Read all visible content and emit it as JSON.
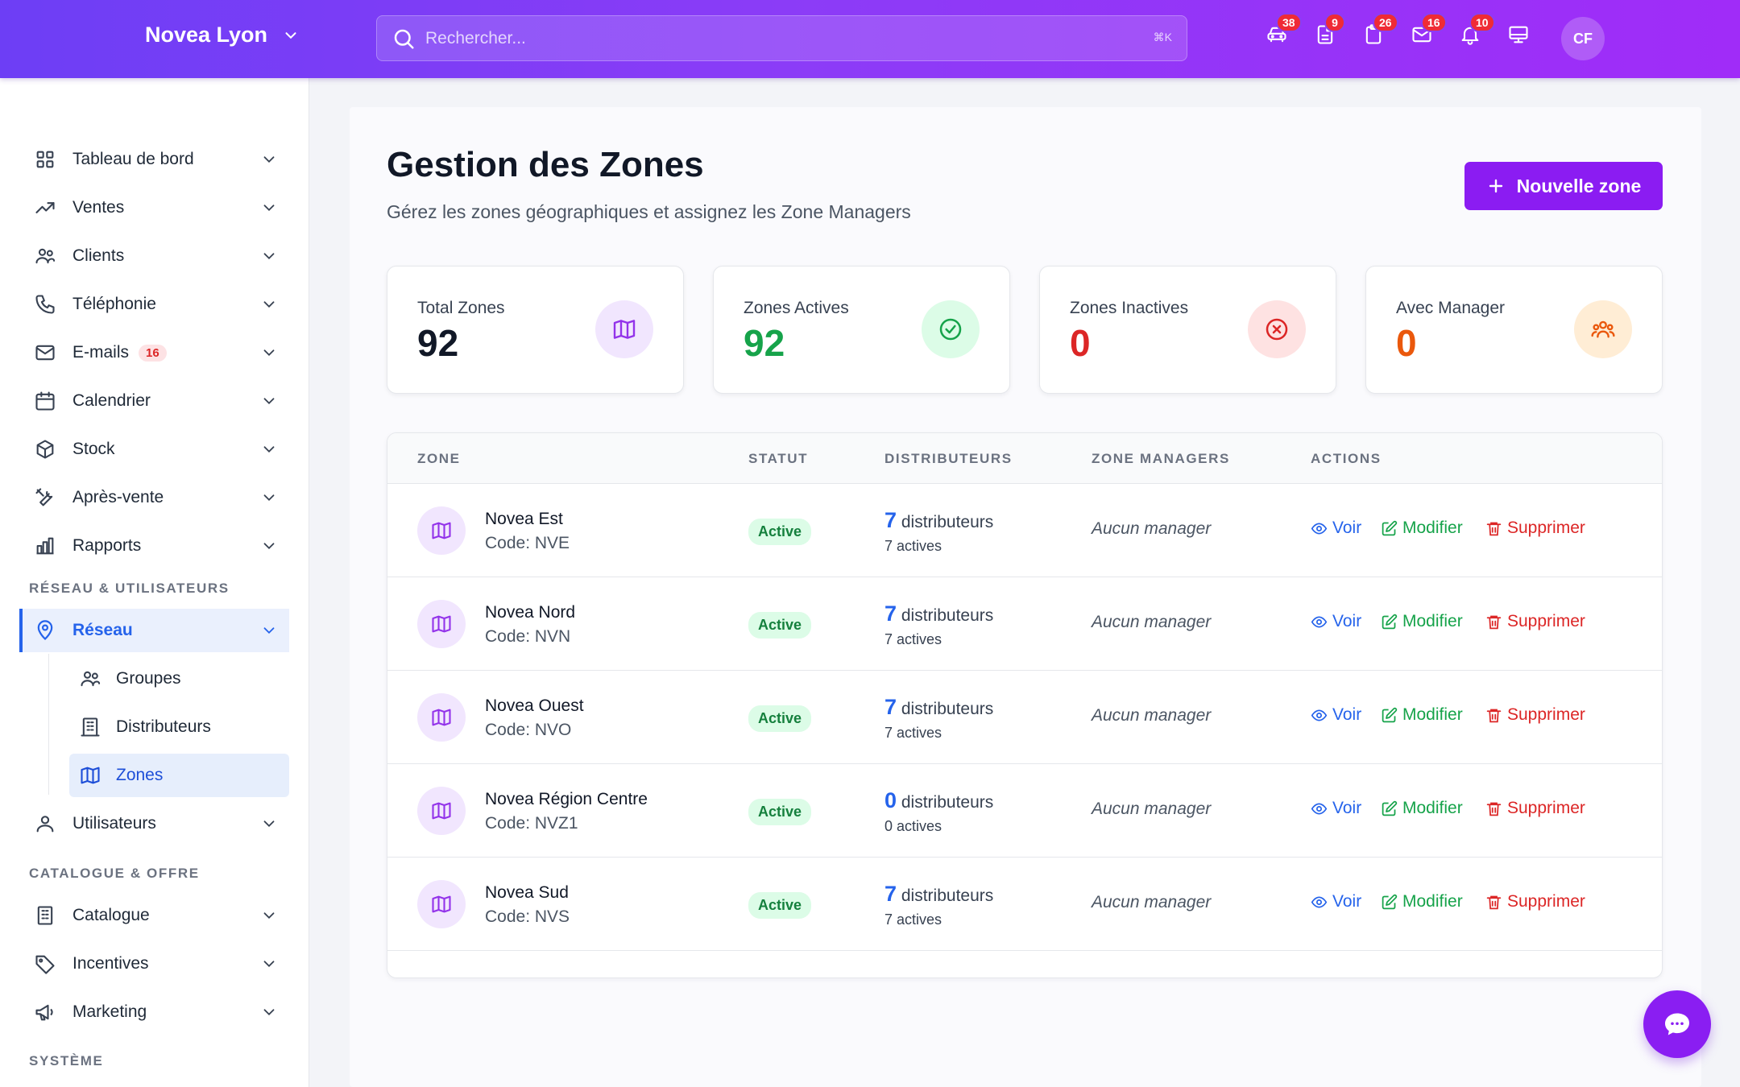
{
  "header": {
    "brand": "Novea Lyon",
    "search_placeholder": "Rechercher...",
    "search_shortcut": "⌘K",
    "icons": [
      {
        "name": "car-icon",
        "badge": "38"
      },
      {
        "name": "document-icon",
        "badge": "9"
      },
      {
        "name": "clipboard-icon",
        "badge": "26"
      },
      {
        "name": "mail-icon",
        "badge": "16"
      },
      {
        "name": "bell-icon",
        "badge": "10"
      },
      {
        "name": "monitor-icon",
        "badge": ""
      }
    ],
    "avatar": "CF"
  },
  "sidebar": {
    "items": [
      {
        "label": "Tableau de bord",
        "icon": "grid-icon"
      },
      {
        "label": "Ventes",
        "icon": "trend-icon"
      },
      {
        "label": "Clients",
        "icon": "users-icon"
      },
      {
        "label": "Téléphonie",
        "icon": "phone-icon"
      },
      {
        "label": "E-mails",
        "icon": "mail-icon",
        "badge": "16"
      },
      {
        "label": "Calendrier",
        "icon": "calendar-icon"
      },
      {
        "label": "Stock",
        "icon": "box-icon"
      },
      {
        "label": "Après-vente",
        "icon": "tools-icon"
      },
      {
        "label": "Rapports",
        "icon": "chart-icon"
      }
    ],
    "section_network": "RÉSEAU & UTILISATEURS",
    "reseau": "Réseau",
    "sub_items": [
      "Groupes",
      "Distributeurs",
      "Zones"
    ],
    "utilisateurs": "Utilisateurs",
    "section_catalog": "CATALOGUE & OFFRE",
    "catalog_items": [
      "Catalogue",
      "Incentives",
      "Marketing"
    ],
    "section_system": "SYSTÈME"
  },
  "page": {
    "title": "Gestion des Zones",
    "subtitle": "Gérez les zones géographiques et assignez les Zone Managers",
    "new_button": "Nouvelle zone"
  },
  "stats": [
    {
      "label": "Total Zones",
      "value": "92",
      "color": "#111827"
    },
    {
      "label": "Zones Actives",
      "value": "92",
      "color": "#16a34a"
    },
    {
      "label": "Zones Inactives",
      "value": "0",
      "color": "#dc2626"
    },
    {
      "label": "Avec Manager",
      "value": "0",
      "color": "#ea580c"
    }
  ],
  "table": {
    "headers": [
      "ZONE",
      "STATUT",
      "DISTRIBUTEURS",
      "ZONE MANAGERS",
      "ACTIONS"
    ],
    "rows": [
      {
        "name": "Novea Est",
        "code": "Code: NVE",
        "status": "Active",
        "count": "7",
        "count_label": "distributeurs",
        "actives": "7 actives",
        "manager": "Aucun manager"
      },
      {
        "name": "Novea Nord",
        "code": "Code: NVN",
        "status": "Active",
        "count": "7",
        "count_label": "distributeurs",
        "actives": "7 actives",
        "manager": "Aucun manager"
      },
      {
        "name": "Novea Ouest",
        "code": "Code: NVO",
        "status": "Active",
        "count": "7",
        "count_label": "distributeurs",
        "actives": "7 actives",
        "manager": "Aucun manager"
      },
      {
        "name": "Novea Région Centre",
        "code": "Code: NVZ1",
        "status": "Active",
        "count": "0",
        "count_label": "distributeurs",
        "actives": "0 actives",
        "manager": "Aucun manager"
      },
      {
        "name": "Novea Sud",
        "code": "Code: NVS",
        "status": "Active",
        "count": "7",
        "count_label": "distributeurs",
        "actives": "7 actives",
        "manager": "Aucun manager"
      }
    ],
    "actions": {
      "view": "Voir",
      "edit": "Modifier",
      "delete": "Supprimer"
    }
  },
  "colors": {
    "accent": "#8b1cf2",
    "blue": "#2563eb",
    "green": "#16a34a",
    "red": "#dc2626",
    "orange": "#ea580c"
  }
}
